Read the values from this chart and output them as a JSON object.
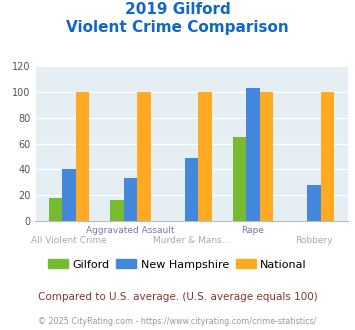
{
  "title_line1": "2019 Gilford",
  "title_line2": "Violent Crime Comparison",
  "categories": [
    "All Violent Crime",
    "Aggravated Assault",
    "Murder & Mans...",
    "Rape",
    "Robbery"
  ],
  "top_row_labels": [
    "",
    "Aggravated Assault",
    "",
    "Rape",
    ""
  ],
  "bottom_row_labels": [
    "All Violent Crime",
    "",
    "Murder & Mans...",
    "",
    "Robbery"
  ],
  "series": {
    "Gilford": [
      18,
      16,
      0,
      65,
      0
    ],
    "New Hampshire": [
      40,
      33,
      49,
      103,
      28
    ],
    "National": [
      100,
      100,
      100,
      100,
      100
    ]
  },
  "colors": {
    "Gilford": "#77bb33",
    "New Hampshire": "#4488dd",
    "National": "#ffaa22"
  },
  "ylim": [
    0,
    120
  ],
  "yticks": [
    0,
    20,
    40,
    60,
    80,
    100,
    120
  ],
  "plot_bg": "#e4eef3",
  "title_color": "#1166cc",
  "top_label_color": "#7777aa",
  "bottom_label_color": "#aaaaaa",
  "footer_text": "Compared to U.S. average. (U.S. average equals 100)",
  "copyright_text": "© 2025 CityRating.com - https://www.cityrating.com/crime-statistics/",
  "footer_color": "#883333",
  "copyright_color": "#999999",
  "legend_labels": [
    "Gilford",
    "New Hampshire",
    "National"
  ]
}
